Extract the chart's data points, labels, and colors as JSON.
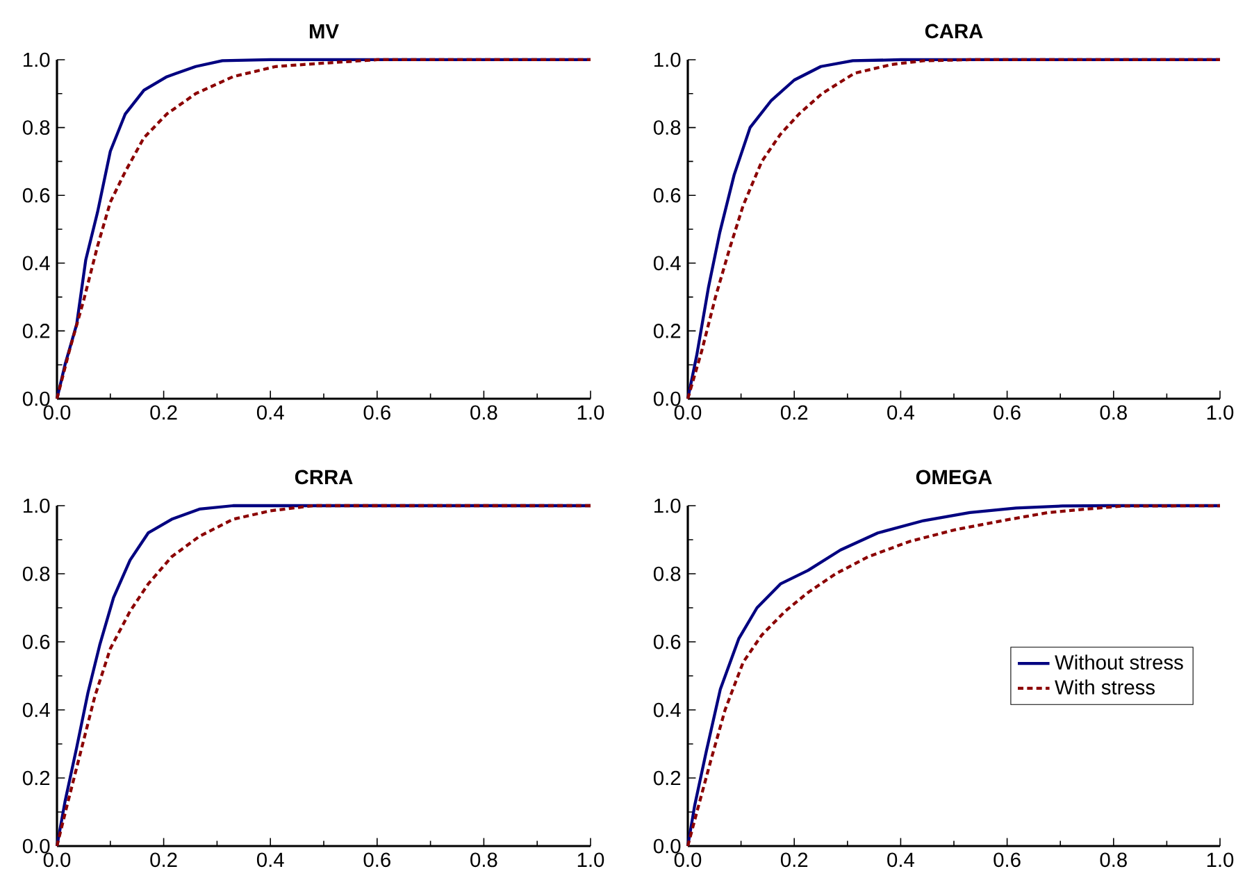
{
  "chart_data": [
    {
      "type": "line",
      "title": "MV",
      "xlim": [
        0,
        1
      ],
      "ylim": [
        0,
        1
      ],
      "xticks": [
        {
          "value": 0,
          "label": "0.0"
        },
        {
          "value": 0.2,
          "label": "0.2"
        },
        {
          "value": 0.4,
          "label": "0.4"
        },
        {
          "value": 0.6,
          "label": "0.6"
        },
        {
          "value": 0.8,
          "label": "0.8"
        },
        {
          "value": 1,
          "label": "1.0"
        }
      ],
      "yticks": [
        {
          "value": 0,
          "label": "0.0"
        },
        {
          "value": 0.2,
          "label": "0.2"
        },
        {
          "value": 0.4,
          "label": "0.4"
        },
        {
          "value": 0.6,
          "label": "0.6"
        },
        {
          "value": 0.8,
          "label": "0.8"
        },
        {
          "value": 1,
          "label": "1.0"
        }
      ],
      "series": [
        {
          "color": "#000080",
          "line_style": "solid",
          "x": [
            0,
            0.015,
            0.037,
            0.054,
            0.076,
            0.1,
            0.128,
            0.163,
            0.206,
            0.26,
            0.31,
            0.4,
            1.0
          ],
          "values": [
            0,
            0.1,
            0.22,
            0.41,
            0.55,
            0.73,
            0.84,
            0.91,
            0.95,
            0.98,
            0.997,
            1.0,
            1.0
          ]
        },
        {
          "color": "#8b0000",
          "line_style": "dashed",
          "x": [
            0,
            0.023,
            0.05,
            0.076,
            0.1,
            0.128,
            0.163,
            0.206,
            0.26,
            0.33,
            0.41,
            0.5,
            0.6,
            1.0
          ],
          "values": [
            0,
            0.14,
            0.29,
            0.45,
            0.58,
            0.67,
            0.77,
            0.84,
            0.9,
            0.95,
            0.98,
            0.99,
            1.0,
            1.0
          ]
        }
      ]
    },
    {
      "type": "line",
      "title": "CARA",
      "xlim": [
        0,
        1
      ],
      "ylim": [
        0,
        1
      ],
      "xticks": [
        {
          "value": 0,
          "label": "0.0"
        },
        {
          "value": 0.2,
          "label": "0.2"
        },
        {
          "value": 0.4,
          "label": "0.4"
        },
        {
          "value": 0.6,
          "label": "0.6"
        },
        {
          "value": 0.8,
          "label": "0.8"
        },
        {
          "value": 1,
          "label": "1.0"
        }
      ],
      "yticks": [
        {
          "value": 0,
          "label": "0.0"
        },
        {
          "value": 0.2,
          "label": "0.2"
        },
        {
          "value": 0.4,
          "label": "0.4"
        },
        {
          "value": 0.6,
          "label": "0.6"
        },
        {
          "value": 0.8,
          "label": "0.8"
        },
        {
          "value": 1,
          "label": "1.0"
        }
      ],
      "series": [
        {
          "color": "#000080",
          "line_style": "solid",
          "x": [
            0,
            0.017,
            0.039,
            0.06,
            0.087,
            0.117,
            0.157,
            0.2,
            0.25,
            0.31,
            0.4,
            1.0
          ],
          "values": [
            0,
            0.13,
            0.33,
            0.49,
            0.66,
            0.8,
            0.88,
            0.94,
            0.98,
            0.997,
            1.0,
            1.0
          ]
        },
        {
          "color": "#8b0000",
          "line_style": "dashed",
          "x": [
            0,
            0.026,
            0.052,
            0.078,
            0.104,
            0.139,
            0.174,
            0.209,
            0.252,
            0.313,
            0.383,
            0.443,
            0.53,
            1.0
          ],
          "values": [
            0,
            0.14,
            0.3,
            0.44,
            0.57,
            0.7,
            0.78,
            0.84,
            0.9,
            0.96,
            0.986,
            0.997,
            1.0,
            1.0
          ]
        }
      ]
    },
    {
      "type": "line",
      "title": "CRRA",
      "xlim": [
        0,
        1
      ],
      "ylim": [
        0,
        1
      ],
      "xticks": [
        {
          "value": 0,
          "label": "0.0"
        },
        {
          "value": 0.2,
          "label": "0.2"
        },
        {
          "value": 0.4,
          "label": "0.4"
        },
        {
          "value": 0.6,
          "label": "0.6"
        },
        {
          "value": 0.8,
          "label": "0.8"
        },
        {
          "value": 1,
          "label": "1.0"
        }
      ],
      "yticks": [
        {
          "value": 0,
          "label": "0.0"
        },
        {
          "value": 0.2,
          "label": "0.2"
        },
        {
          "value": 0.4,
          "label": "0.4"
        },
        {
          "value": 0.6,
          "label": "0.6"
        },
        {
          "value": 0.8,
          "label": "0.8"
        },
        {
          "value": 1,
          "label": "1.0"
        }
      ],
      "series": [
        {
          "color": "#000080",
          "line_style": "solid",
          "x": [
            0,
            0.015,
            0.037,
            0.058,
            0.08,
            0.106,
            0.137,
            0.171,
            0.215,
            0.267,
            0.33,
            1.0
          ],
          "values": [
            0,
            0.13,
            0.29,
            0.45,
            0.59,
            0.73,
            0.84,
            0.92,
            0.96,
            0.99,
            1.0,
            1.0
          ]
        },
        {
          "color": "#8b0000",
          "line_style": "dashed",
          "x": [
            0,
            0.019,
            0.045,
            0.071,
            0.1,
            0.137,
            0.171,
            0.215,
            0.267,
            0.33,
            0.4,
            0.48,
            1.0
          ],
          "values": [
            0,
            0.12,
            0.28,
            0.44,
            0.58,
            0.69,
            0.77,
            0.85,
            0.91,
            0.96,
            0.985,
            1.0,
            1.0
          ]
        }
      ]
    },
    {
      "type": "line",
      "title": "OMEGA",
      "xlim": [
        0,
        1
      ],
      "ylim": [
        0,
        1
      ],
      "xticks": [
        {
          "value": 0,
          "label": "0.0"
        },
        {
          "value": 0.2,
          "label": "0.2"
        },
        {
          "value": 0.4,
          "label": "0.4"
        },
        {
          "value": 0.6,
          "label": "0.6"
        },
        {
          "value": 0.8,
          "label": "0.8"
        },
        {
          "value": 1,
          "label": "1.0"
        }
      ],
      "yticks": [
        {
          "value": 0,
          "label": "0.0"
        },
        {
          "value": 0.2,
          "label": "0.2"
        },
        {
          "value": 0.4,
          "label": "0.4"
        },
        {
          "value": 0.6,
          "label": "0.6"
        },
        {
          "value": 0.8,
          "label": "0.8"
        },
        {
          "value": 1,
          "label": "1.0"
        }
      ],
      "legend": "right",
      "series": [
        {
          "name": "Without stress",
          "color": "#000080",
          "line_style": "solid",
          "x": [
            0,
            0.013,
            0.035,
            0.061,
            0.096,
            0.13,
            0.174,
            0.226,
            0.287,
            0.357,
            0.443,
            0.53,
            0.617,
            0.704,
            0.79,
            1.0
          ],
          "values": [
            0,
            0.12,
            0.28,
            0.46,
            0.61,
            0.7,
            0.77,
            0.81,
            0.87,
            0.92,
            0.956,
            0.98,
            0.993,
            0.999,
            1.0,
            1.0
          ]
        },
        {
          "name": "With stress",
          "color": "#8b0000",
          "line_style": "dashed",
          "x": [
            0,
            0.017,
            0.043,
            0.07,
            0.104,
            0.139,
            0.183,
            0.226,
            0.278,
            0.339,
            0.417,
            0.504,
            0.591,
            0.678,
            0.748,
            0.817,
            1.0
          ],
          "values": [
            0,
            0.1,
            0.25,
            0.4,
            0.54,
            0.62,
            0.69,
            0.745,
            0.8,
            0.85,
            0.895,
            0.93,
            0.956,
            0.98,
            0.99,
            0.999,
            1.0
          ]
        }
      ]
    }
  ]
}
